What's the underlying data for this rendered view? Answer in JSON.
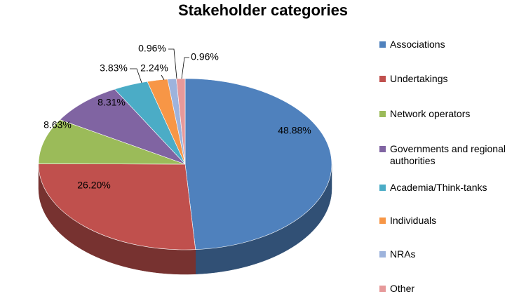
{
  "chart_data": {
    "type": "pie",
    "title": "Stakeholder categories",
    "style": "3d",
    "legend_position": "right",
    "slices": [
      {
        "label": "Associations",
        "value": 48.88,
        "value_label": "48.88%",
        "color": "#4f81bd"
      },
      {
        "label": "Undertakings",
        "value": 26.2,
        "value_label": "26.20%",
        "color": "#c0504d"
      },
      {
        "label": "Network operators",
        "value": 8.63,
        "value_label": "8.63%",
        "color": "#9bbb59"
      },
      {
        "label": "Governments and regional authorities",
        "value": 8.31,
        "value_label": "8.31%",
        "color": "#8064a2"
      },
      {
        "label": "Academia/Think-tanks",
        "value": 3.83,
        "value_label": "3.83%",
        "color": "#4bacc6"
      },
      {
        "label": "Individuals",
        "value": 2.24,
        "value_label": "2.24%",
        "color": "#f79646"
      },
      {
        "label": "NRAs",
        "value": 0.96,
        "value_label": "0.96%",
        "color": "#9db3dc"
      },
      {
        "label": "Other",
        "value": 0.96,
        "value_label": "0.96%",
        "color": "#e6999a"
      }
    ]
  }
}
